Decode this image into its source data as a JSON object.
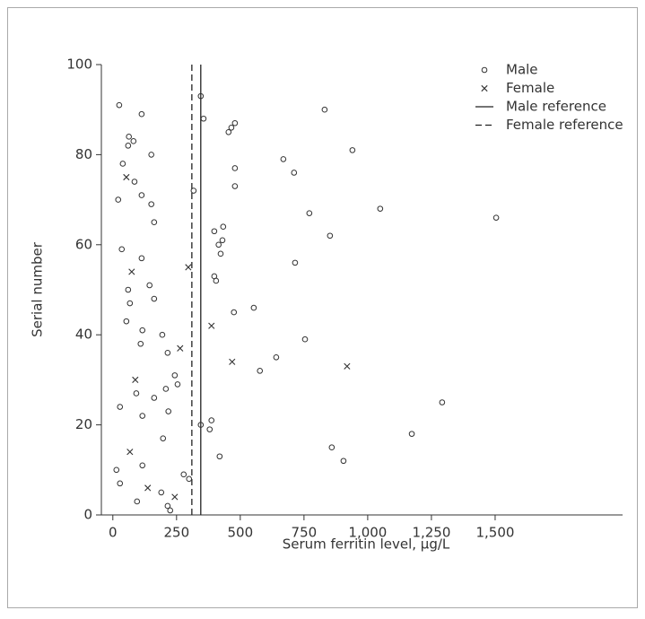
{
  "chart_data": {
    "type": "scatter",
    "x_label": "Serum ferritin level, μg/L",
    "y_label": "Serial number",
    "xlim": [
      -45,
      2000
    ],
    "ylim": [
      0,
      100
    ],
    "xticks": [
      0,
      250,
      500,
      750,
      {
        "value": 1000,
        "label": "1,000"
      },
      {
        "value": 1250,
        "label": "1,250"
      },
      {
        "value": 1500,
        "label": "1,500"
      }
    ],
    "yticks": [
      0,
      20,
      40,
      60,
      80,
      100
    ],
    "legend": "top-right",
    "series": [
      {
        "name": "Male",
        "marker": "circle",
        "color": "#333333",
        "x": [
          25,
          113,
          345,
          356,
          465,
          454,
          831,
          479,
          63,
          81,
          60,
          151,
          39,
          85,
          113,
          21,
          151,
          162,
          317,
          940,
          669,
          479,
          711,
          479,
          771,
          1049,
          1504,
          430,
          415,
          35,
          113,
          433,
          398,
          852,
          423,
          715,
          398,
          405,
          144,
          60,
          162,
          67,
          553,
          475,
          53,
          116,
          194,
          754,
          109,
          215,
          641,
          577,
          243,
          208,
          92,
          254,
          162,
          1292,
          28,
          218,
          116,
          387,
          345,
          380,
          1173,
          197,
          859,
          419,
          905,
          116,
          14,
          278,
          299,
          28,
          190,
          95,
          215,
          225
        ],
        "values": [
          91,
          89,
          93,
          88,
          86,
          85,
          90,
          87,
          84,
          83,
          82,
          80,
          78,
          74,
          71,
          70,
          69,
          65,
          72,
          81,
          79,
          77,
          76,
          73,
          67,
          68,
          66,
          61,
          60,
          59,
          57,
          64,
          63,
          62,
          58,
          56,
          53,
          52,
          51,
          50,
          48,
          47,
          46,
          45,
          43,
          41,
          40,
          39,
          38,
          36,
          35,
          32,
          31,
          28,
          27,
          29,
          26,
          25,
          24,
          23,
          22,
          21,
          20,
          19,
          18,
          17,
          15,
          13,
          12,
          11,
          10,
          9,
          8,
          7,
          5,
          3,
          2,
          1
        ]
      },
      {
        "name": "Female",
        "marker": "cross",
        "color": "#333333",
        "x": [
          53,
          74,
          296,
          387,
          264,
          88,
          468,
          919,
          67,
          137,
          243
        ],
        "values": [
          75,
          54,
          55,
          42,
          37,
          30,
          34,
          33,
          14,
          6,
          4
        ]
      }
    ],
    "reference_lines": [
      {
        "name": "Male reference",
        "value": 345,
        "style": "solid",
        "color": "#222222"
      },
      {
        "name": "Female reference",
        "value": 310,
        "style": "dashed",
        "color": "#222222"
      }
    ]
  }
}
